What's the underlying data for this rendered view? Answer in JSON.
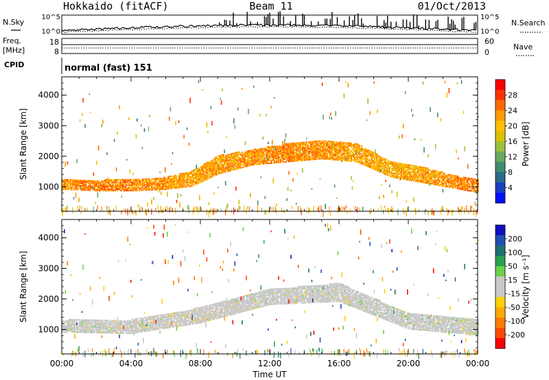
{
  "header": {
    "station": "Hokkaido (fitACF)",
    "beam": "Beam 11",
    "date": "01/Oct/2013"
  },
  "strip": {
    "nsky_label": "N.Sky",
    "nsearch_label": "N.Search",
    "noise_ticks": [
      "10^5",
      "10^0"
    ],
    "freq_label_1": "Freq.",
    "freq_label_2": "[MHz]",
    "freq_ticks": [
      "18",
      "8"
    ],
    "nave_label": "Nave",
    "nave_ticks": [
      "60",
      "0"
    ],
    "cpid_label": "CPID",
    "cpid_value": "normal (fast) 151"
  },
  "axes": {
    "xlabel": "Time UT",
    "x_ticks": [
      "00:00",
      "04:00",
      "08:00",
      "12:00",
      "16:00",
      "20:00",
      "00:00"
    ],
    "ylabel": "Slant Range [km]",
    "y_ticks": [
      "1000",
      "2000",
      "3000",
      "4000"
    ],
    "yrange_km": [
      200,
      4600
    ]
  },
  "colorbars": {
    "power": {
      "label": "Power [dB]",
      "ticks": [
        "28",
        "24",
        "20",
        "16",
        "12",
        "8",
        "4"
      ],
      "colors": [
        "#ff0000",
        "#ff3300",
        "#ff6a00",
        "#ff9a00",
        "#ffc000",
        "#dcc000",
        "#9bc23c",
        "#6aa860",
        "#3f8a70",
        "#2c6a8a",
        "#1b3fc0",
        "#0010ff"
      ]
    },
    "velocity": {
      "label": "Velocity [m s⁻¹]",
      "ticks": [
        "200",
        "100",
        "50",
        "15",
        "-15",
        "-50",
        "-100",
        "-200"
      ],
      "colors": [
        "#1010c0",
        "#2050b0",
        "#1f7070",
        "#2aa050",
        "#6ad04a",
        "#c8c8c8",
        "#c8c8c8",
        "#ffd000",
        "#ffaa00",
        "#ff7a00",
        "#ff4a00",
        "#ff0000"
      ]
    }
  },
  "chart_data": [
    {
      "type": "heatmap",
      "title": "Hokkaido (fitACF)  Beam 11  01/Oct/2013",
      "quantity": "Power [dB]",
      "x": "Time UT, 00:00–24:00",
      "ylabel": "Slant Range [km]",
      "ylim": [
        200,
        4600
      ],
      "color_range": [
        0,
        30
      ],
      "main_echo_band": [
        {
          "t": 0,
          "lo": 900,
          "hi": 1250,
          "p": 26
        },
        {
          "t": 2,
          "lo": 850,
          "hi": 1200,
          "p": 27
        },
        {
          "t": 4,
          "lo": 850,
          "hi": 1250,
          "p": 27
        },
        {
          "t": 6,
          "lo": 900,
          "hi": 1300,
          "p": 26
        },
        {
          "t": 7.5,
          "lo": 1000,
          "hi": 1500,
          "p": 25
        },
        {
          "t": 9,
          "lo": 1400,
          "hi": 2000,
          "p": 25
        },
        {
          "t": 11,
          "lo": 1700,
          "hi": 2200,
          "p": 26
        },
        {
          "t": 13,
          "lo": 1800,
          "hi": 2400,
          "p": 27
        },
        {
          "t": 15,
          "lo": 1900,
          "hi": 2500,
          "p": 26
        },
        {
          "t": 17,
          "lo": 1800,
          "hi": 2400,
          "p": 25
        },
        {
          "t": 19,
          "lo": 1300,
          "hi": 1800,
          "p": 24
        },
        {
          "t": 21,
          "lo": 1100,
          "hi": 1600,
          "p": 25
        },
        {
          "t": 23,
          "lo": 900,
          "hi": 1300,
          "p": 27
        },
        {
          "t": 24,
          "lo": 800,
          "hi": 1250,
          "p": 27
        }
      ]
    },
    {
      "type": "heatmap",
      "quantity": "Velocity [m s⁻¹]",
      "x": "Time UT, 00:00–24:00",
      "ylabel": "Slant Range [km]",
      "ylim": [
        200,
        4600
      ],
      "color_range": [
        -200,
        200
      ],
      "main_echo_band": [
        {
          "t": 0,
          "lo": 900,
          "hi": 1300,
          "v": 0
        },
        {
          "t": 4,
          "lo": 850,
          "hi": 1300,
          "v": 0
        },
        {
          "t": 8,
          "lo": 1200,
          "hi": 1700,
          "v": -40
        },
        {
          "t": 12,
          "lo": 1800,
          "hi": 2300,
          "v": 0
        },
        {
          "t": 16,
          "lo": 1900,
          "hi": 2500,
          "v": 0
        },
        {
          "t": 20,
          "lo": 1000,
          "hi": 1500,
          "v": 10
        },
        {
          "t": 24,
          "lo": 800,
          "hi": 1300,
          "v": 0
        }
      ]
    }
  ]
}
